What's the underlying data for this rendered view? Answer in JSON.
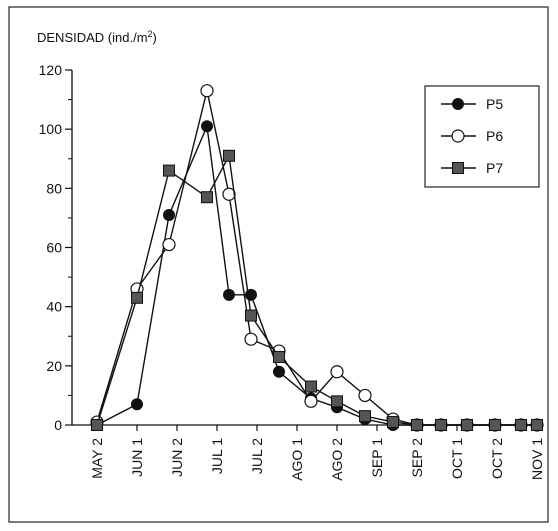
{
  "chart_data": {
    "type": "line",
    "ylabel": "DENSIDAD (ind./m²)",
    "ylabel_base": "DENSIDAD (ind./m",
    "ylabel_sup": "2",
    "ylabel_close": ")",
    "categories": [
      "MAY 2",
      "JUN 1",
      "JUN 2",
      "JUL 1",
      "JUL 2",
      "AGO 1",
      "AGO 2",
      "SEP 1",
      "SEP 2",
      "OCT 1",
      "OCT 2",
      "NOV 1"
    ],
    "ylim": [
      0,
      120
    ],
    "yticks": [
      0,
      20,
      40,
      60,
      80,
      100,
      120
    ],
    "grid": false,
    "legend_position": "top-right",
    "series": [
      {
        "name": "P5",
        "marker": "filled-circle",
        "x": [
          0,
          1,
          1.8,
          2.75,
          3.3,
          3.85,
          4.55,
          5.35,
          6.0,
          6.7,
          7.4,
          8.0,
          8.6,
          9.25,
          9.95,
          10.6,
          11.0
        ],
        "values": [
          0,
          7,
          71,
          101,
          44,
          44,
          18,
          9,
          6,
          2,
          0,
          0,
          0,
          0,
          0,
          0,
          0
        ]
      },
      {
        "name": "P6",
        "marker": "open-circle",
        "x": [
          0,
          1,
          1.8,
          2.75,
          3.3,
          3.85,
          4.55,
          5.35,
          6.0,
          6.7,
          7.4,
          8.0,
          8.6,
          9.25,
          9.95,
          10.6,
          11.0
        ],
        "values": [
          1,
          46,
          61,
          113,
          78,
          29,
          25,
          8,
          18,
          10,
          2,
          0,
          0,
          0,
          0,
          0,
          0
        ]
      },
      {
        "name": "P7",
        "marker": "square",
        "x": [
          0,
          1,
          1.8,
          2.75,
          3.3,
          3.85,
          4.55,
          5.35,
          6.0,
          6.7,
          7.4,
          8.0,
          8.6,
          9.25,
          9.95,
          10.6,
          11.0
        ],
        "values": [
          0,
          43,
          86,
          77,
          91,
          37,
          23,
          13,
          8,
          3,
          1,
          0,
          0,
          0,
          0,
          0,
          0
        ]
      }
    ]
  }
}
